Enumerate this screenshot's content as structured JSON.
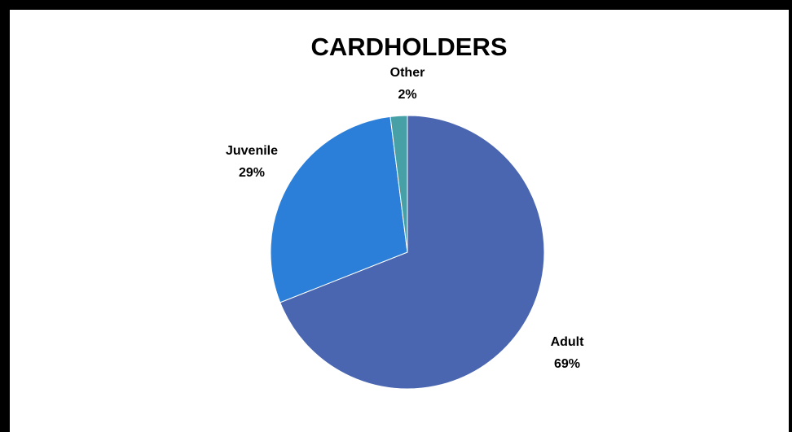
{
  "chart_data": {
    "type": "pie",
    "title": "CARDHOLDERS",
    "categories": [
      "Adult",
      "Juvenile",
      "Other"
    ],
    "values": [
      69,
      29,
      2
    ],
    "value_labels": [
      "69%",
      "29%",
      "2%"
    ],
    "colors": [
      "#4a66b0",
      "#2b7fd9",
      "#46a0a6"
    ],
    "start_angle_deg": 0,
    "direction": "clockwise",
    "legend": "none",
    "grid": false
  }
}
